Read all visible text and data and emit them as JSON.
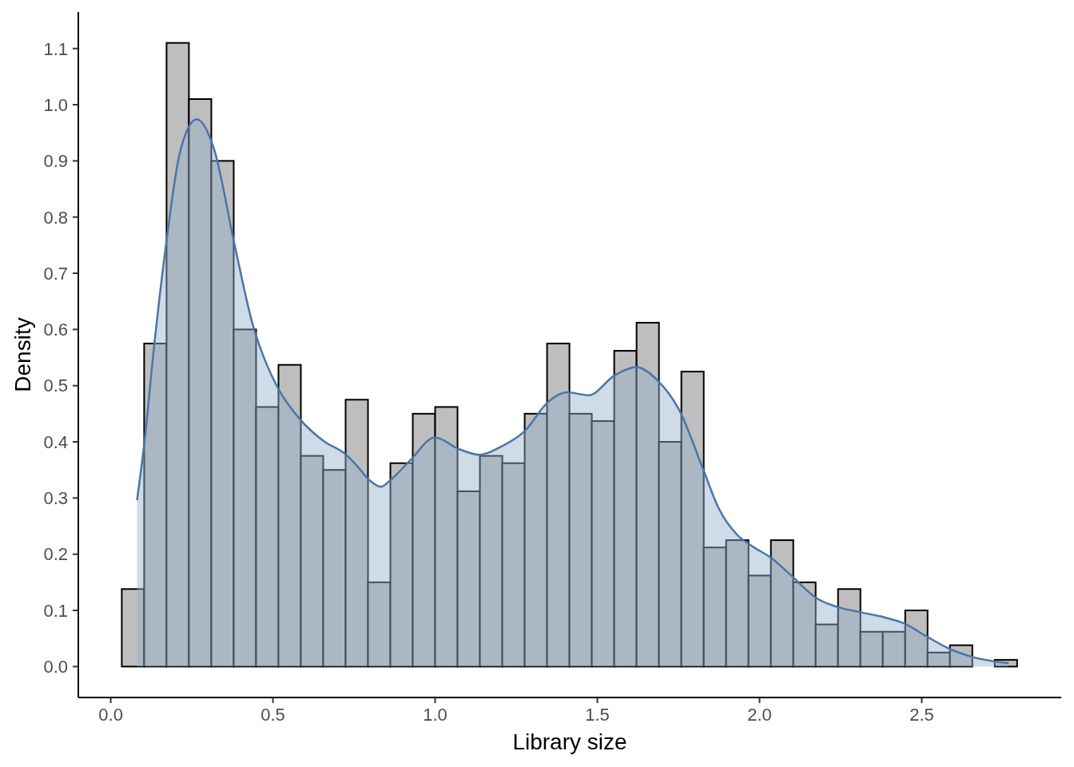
{
  "chart_data": {
    "type": "histogram",
    "xlabel": "Library size",
    "ylabel": "Density",
    "bins": [
      0.034,
      0.103,
      0.172,
      0.241,
      0.31,
      0.379,
      0.448,
      0.517,
      0.586,
      0.655,
      0.724,
      0.793,
      0.862,
      0.931,
      1.0,
      1.069,
      1.138,
      1.207,
      1.276,
      1.345,
      1.414,
      1.483,
      1.552,
      1.621,
      1.69,
      1.759,
      1.828,
      1.897,
      1.966,
      2.035,
      2.104,
      2.173,
      2.242,
      2.311,
      2.38,
      2.449,
      2.518,
      2.587,
      2.656,
      2.725,
      2.794
    ],
    "series": [
      {
        "type": "histogram",
        "color": "#bebebe",
        "values": [
          0.138,
          0.575,
          1.11,
          1.01,
          0.9,
          0.6,
          0.462,
          0.537,
          0.375,
          0.35,
          0.475,
          0.15,
          0.362,
          0.45,
          0.462,
          0.312,
          0.375,
          0.362,
          0.45,
          0.575,
          0.45,
          0.437,
          0.562,
          0.612,
          0.4,
          0.525,
          0.212,
          0.225,
          0.162,
          0.225,
          0.15,
          0.075,
          0.138,
          0.062,
          0.062,
          0.1,
          0.025,
          0.038,
          0,
          0.012
        ]
      },
      {
        "type": "area",
        "color": "#4a76a8",
        "x": [
          0.081,
          0.105,
          0.13,
          0.174,
          0.212,
          0.265,
          0.319,
          0.381,
          0.438,
          0.482,
          0.519,
          0.582,
          0.657,
          0.721,
          0.758,
          0.795,
          0.833,
          0.866,
          0.923,
          1.0,
          1.07,
          1.137,
          1.202,
          1.276,
          1.35,
          1.407,
          1.473,
          1.555,
          1.62,
          1.686,
          1.752,
          1.825,
          1.874,
          1.932,
          1.973,
          2.039,
          2.096,
          2.178,
          2.235,
          2.309,
          2.383,
          2.449,
          2.514,
          2.588,
          2.657,
          2.768
        ],
        "values": [
          0.296,
          0.405,
          0.55,
          0.767,
          0.912,
          0.974,
          0.92,
          0.753,
          0.608,
          0.536,
          0.492,
          0.441,
          0.401,
          0.379,
          0.358,
          0.333,
          0.32,
          0.334,
          0.367,
          0.408,
          0.388,
          0.377,
          0.391,
          0.419,
          0.472,
          0.488,
          0.483,
          0.519,
          0.533,
          0.509,
          0.457,
          0.353,
          0.282,
          0.234,
          0.216,
          0.192,
          0.163,
          0.121,
          0.107,
          0.097,
          0.088,
          0.076,
          0.054,
          0.031,
          0.017,
          0.006
        ]
      }
    ],
    "xlim": [
      -0.1,
      2.93
    ],
    "ylim": [
      -0.055,
      1.165
    ],
    "xticks": [
      {
        "value": 0,
        "label": "0.0"
      },
      0.5,
      {
        "value": 1,
        "label": "1.0"
      },
      1.5,
      {
        "value": 2,
        "label": "2.0"
      },
      2.5
    ],
    "yticks": [
      {
        "value": 0,
        "label": "0.0"
      },
      0.1,
      0.2,
      0.3,
      0.4,
      0.5,
      0.6,
      0.7,
      0.8,
      0.9,
      {
        "value": 1,
        "label": "1.0"
      },
      1.1
    ]
  }
}
